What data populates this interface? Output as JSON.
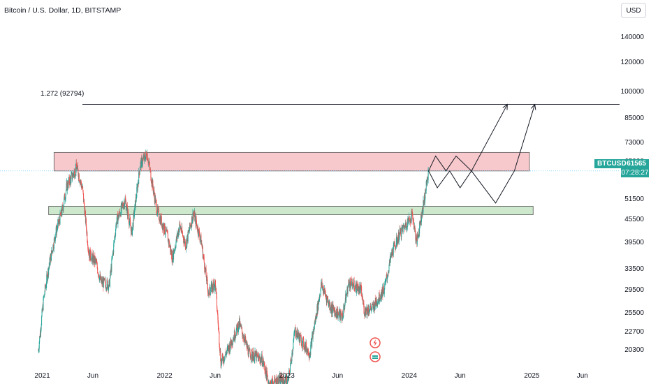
{
  "header": {
    "title": "Bitcoin / U.S. Dollar, 1D, BITSTAMP",
    "currency_button": "USD"
  },
  "price_badge": {
    "symbol": "BTCUSD",
    "price": "61565",
    "countdown": "07:28:27"
  },
  "colors": {
    "up": "#26a69a",
    "down": "#ef5350",
    "resistance_fill": "#f8c9cc",
    "support_fill": "#cde8cc",
    "priceline": "#4fc3f7"
  },
  "icons": [
    "lightning-event-icon",
    "earnings-event-icon"
  ],
  "chart_data": {
    "type": "candlestick",
    "title": "Bitcoin / U.S. Dollar, 1D, BITSTAMP",
    "yscale": "log",
    "ylim": [
      18500,
      158000
    ],
    "y_ticks": [
      "140000",
      "120000",
      "100000",
      "85000",
      "73000",
      "65000",
      "51500",
      "45500",
      "39500",
      "33500",
      "29500",
      "25500",
      "22700",
      "20300"
    ],
    "x_ticks": [
      "2021",
      "Jun",
      "2022",
      "Jun",
      "2023",
      "Jun",
      "2024",
      "Jun",
      "2025",
      "Jun"
    ],
    "xlim": [
      "2020-12-10",
      "2025-09-20"
    ],
    "fib_level": {
      "label": "1.272 (92794)",
      "value": 92794
    },
    "zones": [
      {
        "name": "resistance",
        "from": "2021-02-05",
        "to": "2024-12-25",
        "low": 61565,
        "high": 69000
      },
      {
        "name": "support",
        "from": "2021-01-20",
        "to": "2025-01-05",
        "low": 47000,
        "high": 49500
      }
    ],
    "last_price": 61565,
    "price_path": [
      [
        "2020-12-20",
        20300
      ],
      [
        "2021-01-05",
        28000
      ],
      [
        "2021-01-20",
        34000
      ],
      [
        "2021-02-10",
        42000
      ],
      [
        "2021-03-01",
        48000
      ],
      [
        "2021-03-15",
        56000
      ],
      [
        "2021-04-14",
        63000
      ],
      [
        "2021-05-01",
        55000
      ],
      [
        "2021-05-20",
        37000
      ],
      [
        "2021-06-10",
        35000
      ],
      [
        "2021-06-25",
        31000
      ],
      [
        "2021-07-20",
        30500
      ],
      [
        "2021-08-10",
        45000
      ],
      [
        "2021-09-05",
        51500
      ],
      [
        "2021-09-25",
        42000
      ],
      [
        "2021-10-20",
        64000
      ],
      [
        "2021-11-10",
        68500
      ],
      [
        "2021-11-25",
        57000
      ],
      [
        "2021-12-10",
        48000
      ],
      [
        "2022-01-10",
        41000
      ],
      [
        "2022-01-24",
        36000
      ],
      [
        "2022-02-15",
        44000
      ],
      [
        "2022-03-05",
        39000
      ],
      [
        "2022-03-28",
        47500
      ],
      [
        "2022-04-20",
        40000
      ],
      [
        "2022-05-12",
        29000
      ],
      [
        "2022-06-01",
        31000
      ],
      [
        "2022-06-18",
        18900
      ],
      [
        "2022-07-10",
        20500
      ],
      [
        "2022-08-12",
        24000
      ],
      [
        "2022-09-10",
        20000
      ],
      [
        "2022-10-20",
        19200
      ],
      [
        "2022-11-09",
        16500
      ],
      [
        "2022-12-15",
        17000
      ],
      [
        "2023-01-05",
        16800
      ],
      [
        "2023-01-25",
        23000
      ],
      [
        "2023-03-10",
        20000
      ],
      [
        "2023-04-14",
        30500
      ],
      [
        "2023-05-12",
        26500
      ],
      [
        "2023-06-15",
        25000
      ],
      [
        "2023-07-05",
        31000
      ],
      [
        "2023-08-10",
        29500
      ],
      [
        "2023-08-20",
        26000
      ],
      [
        "2023-09-15",
        26500
      ],
      [
        "2023-10-20",
        30000
      ],
      [
        "2023-11-10",
        37000
      ],
      [
        "2023-12-05",
        42000
      ],
      [
        "2024-01-11",
        47000
      ],
      [
        "2024-01-23",
        39500
      ],
      [
        "2024-02-15",
        51500
      ],
      [
        "2024-02-28",
        61565
      ]
    ],
    "projections": [
      {
        "name": "projection-upper",
        "points": [
          [
            "2024-02-28",
            61565
          ],
          [
            "2024-03-20",
            67500
          ],
          [
            "2024-04-20",
            61565
          ],
          [
            "2024-05-20",
            67500
          ],
          [
            "2024-07-05",
            61565
          ],
          [
            "2024-10-20",
            92794
          ]
        ]
      },
      {
        "name": "projection-lower",
        "points": [
          [
            "2024-02-28",
            61565
          ],
          [
            "2024-03-25",
            55500
          ],
          [
            "2024-05-01",
            61565
          ],
          [
            "2024-06-01",
            55500
          ],
          [
            "2024-07-05",
            61565
          ],
          [
            "2024-09-15",
            50500
          ],
          [
            "2024-11-10",
            61565
          ],
          [
            "2025-01-10",
            92794
          ]
        ]
      }
    ]
  }
}
